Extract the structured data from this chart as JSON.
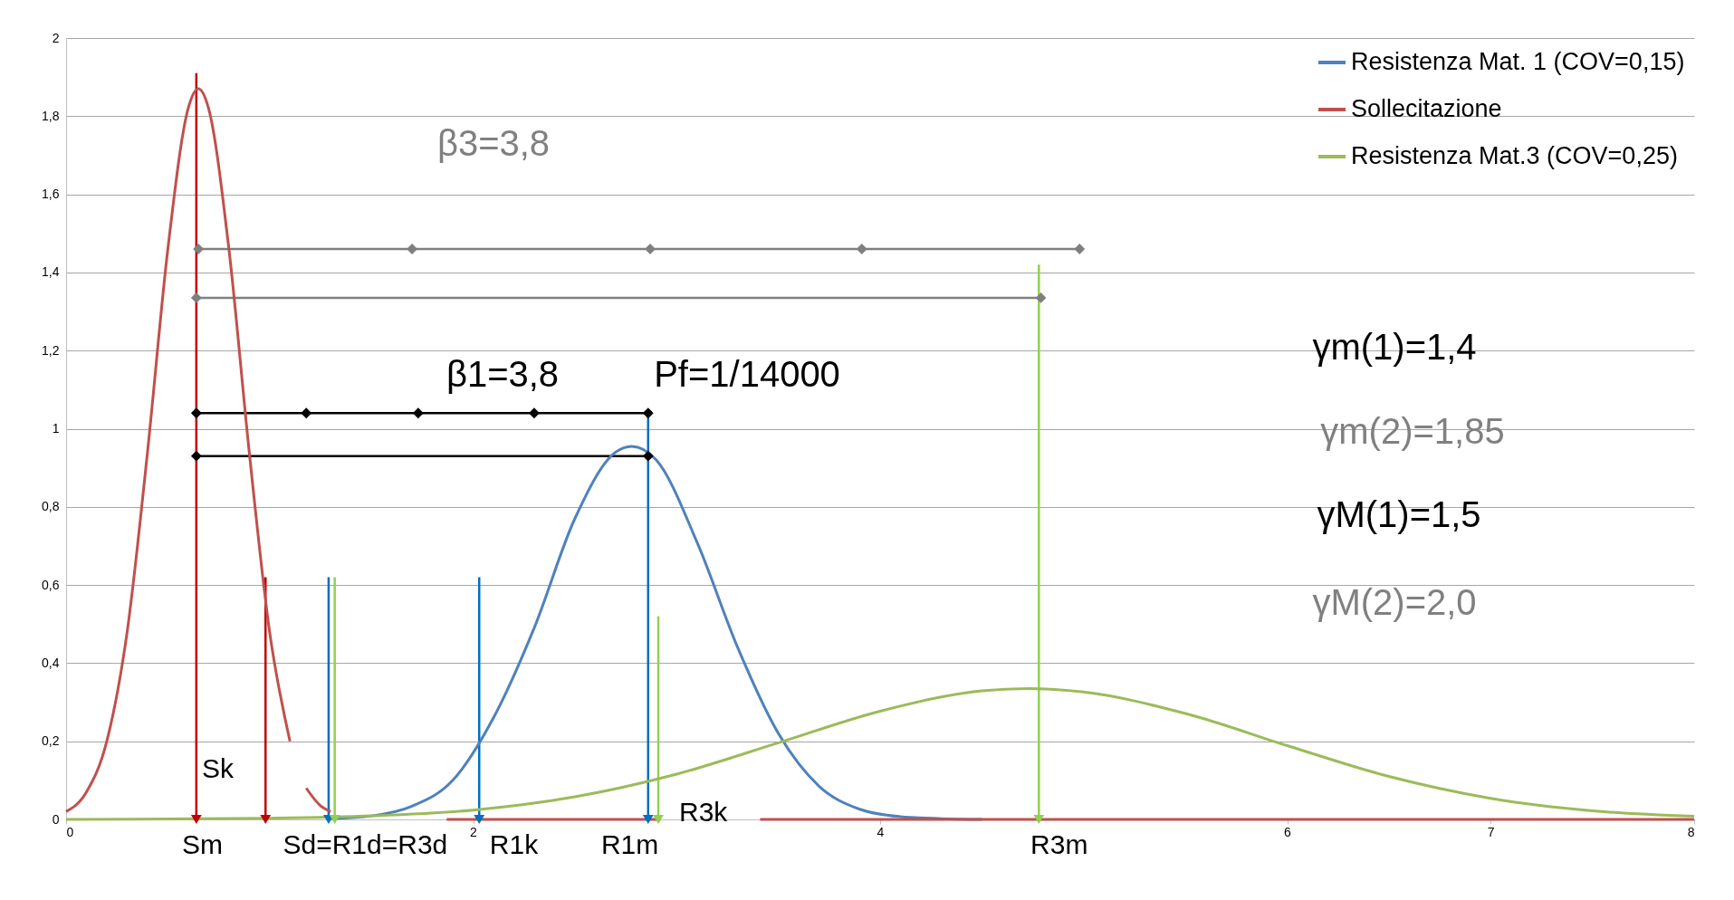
{
  "chart_data": {
    "type": "line",
    "xlim": [
      0,
      8
    ],
    "xticks": [
      0,
      2,
      4,
      6,
      7,
      8
    ],
    "ylim": [
      0,
      2
    ],
    "yticks": [
      0,
      {
        "value": 0.2,
        "label": "0,2"
      },
      {
        "value": 0.4,
        "label": "0,4"
      },
      {
        "value": 0.6,
        "label": "0,6"
      },
      {
        "value": 0.8,
        "label": "0,8"
      },
      1,
      {
        "value": 1.2,
        "label": "1,2"
      },
      {
        "value": 1.4,
        "label": "1,4"
      },
      {
        "value": 1.6,
        "label": "1,6"
      },
      {
        "value": 1.8,
        "label": "1,8"
      },
      2
    ],
    "grid": "y",
    "legend": "top right",
    "series": [
      {
        "name": "Resistenza Mat. 1 (COV=0,15)",
        "color": "#4f81bd",
        "marker": "none",
        "x": [
          1.3,
          1.5,
          1.7,
          1.9,
          2.1,
          2.3,
          2.5,
          2.7,
          2.78,
          2.9,
          3.1,
          3.3,
          3.5,
          3.7,
          3.9,
          4.1,
          4.3,
          4.5
        ],
        "values": [
          0.002,
          0.009,
          0.034,
          0.1,
          0.26,
          0.49,
          0.77,
          0.94,
          0.955,
          0.92,
          0.71,
          0.44,
          0.22,
          0.085,
          0.026,
          0.007,
          0.002,
          0
        ]
      },
      {
        "name": "Sollecitazione",
        "color": "#c0504d",
        "marker": "none",
        "x": [
          0,
          0.1,
          0.2,
          0.3,
          0.4,
          0.5,
          0.6,
          0.65,
          0.7,
          0.8,
          0.9,
          1,
          1.1,
          1.15,
          1.18,
          1.25,
          1.3,
          1.5,
          1.87,
          2.92,
          3.1,
          3.41,
          8
        ],
        "values": [
          0.02,
          0.07,
          0.2,
          0.48,
          0.94,
          1.46,
          1.82,
          1.87,
          1.82,
          1.46,
          0.94,
          0.48,
          0.2,
          null,
          0.08,
          0.035,
          0.02,
          null,
          0,
          0,
          null,
          0,
          0
        ]
      },
      {
        "name": "Resistenza Mat.3 (COV=0,25)",
        "color": "#9bbb59",
        "marker": "none",
        "x": [
          0,
          0.5,
          1,
          1.5,
          2,
          2.5,
          3,
          3.5,
          4,
          4.5,
          4.73,
          5,
          5.5,
          6,
          6.5,
          7,
          7.5,
          8
        ],
        "values": [
          0,
          0.001,
          0.003,
          0.009,
          0.024,
          0.058,
          0.116,
          0.196,
          0.277,
          0.329,
          0.335,
          0.326,
          0.271,
          0.189,
          0.11,
          0.054,
          0.022,
          0.008
        ]
      },
      {
        "color": "#c00000",
        "marker": "triangle",
        "x": [
          0.64,
          0.64
        ],
        "values": [
          1.91,
          0
        ]
      },
      {
        "color": "#c00000",
        "marker": "triangle",
        "x": [
          0.98,
          0.98
        ],
        "values": [
          0.62,
          0
        ]
      },
      {
        "color": "#0070c0",
        "marker": "triangle",
        "x": [
          1.29,
          1.29
        ],
        "values": [
          0.62,
          0
        ]
      },
      {
        "color": "#92d050",
        "marker": "triangle",
        "x": [
          1.32,
          1.32
        ],
        "values": [
          0.62,
          0
        ]
      },
      {
        "color": "#0070c0",
        "marker": "triangle",
        "x": [
          2.03,
          2.03
        ],
        "values": [
          0.62,
          0
        ]
      },
      {
        "color": "#0070c0",
        "marker": "triangle",
        "x": [
          2.86,
          2.86
        ],
        "values": [
          1.03,
          0
        ]
      },
      {
        "color": "#92d050",
        "marker": "triangle",
        "x": [
          2.91,
          2.91
        ],
        "values": [
          0.52,
          0
        ]
      },
      {
        "color": "#92d050",
        "marker": "triangle",
        "x": [
          4.78,
          4.78
        ],
        "values": [
          1.42,
          0
        ]
      },
      {
        "color": "#000000",
        "marker": "diamond",
        "x": [
          0.64,
          1.18,
          1.73,
          2.3,
          2.86
        ],
        "values": [
          1.04,
          1.04,
          1.04,
          1.04,
          1.04
        ]
      },
      {
        "color": "#000000",
        "marker": "diamond",
        "x": [
          0.64,
          2.86
        ],
        "values": [
          0.93,
          0.93
        ]
      },
      {
        "color": "#7f7f7f",
        "marker": "diamond",
        "x": [
          0.65,
          1.7,
          2.87,
          3.91,
          4.98
        ],
        "values": [
          1.46,
          1.46,
          1.46,
          1.46,
          1.46
        ]
      },
      {
        "color": "#7f7f7f",
        "marker": "diamond",
        "x": [
          0.64,
          4.79
        ],
        "values": [
          1.335,
          1.335
        ]
      }
    ],
    "annotations": [
      {
        "text": "Sm",
        "x": 0.67,
        "y": 0
      },
      "Sk",
      {
        "text": "Sd=R1d=R3d",
        "x": 1.47,
        "y": 0
      },
      {
        "text": "R1k",
        "x": 2.2,
        "y": 0
      },
      {
        "text": "R1m",
        "x": 2.77,
        "y": 0
      },
      "R3k",
      {
        "text": "R3m",
        "x": 4.88,
        "y": 0
      },
      "β3=3,8",
      "β1=3,8",
      "Pf=1/14000",
      "γm(1)=1,4",
      "γm(2)=1,85",
      "γM(1)=1,5",
      "γM(2)=2,0"
    ]
  }
}
